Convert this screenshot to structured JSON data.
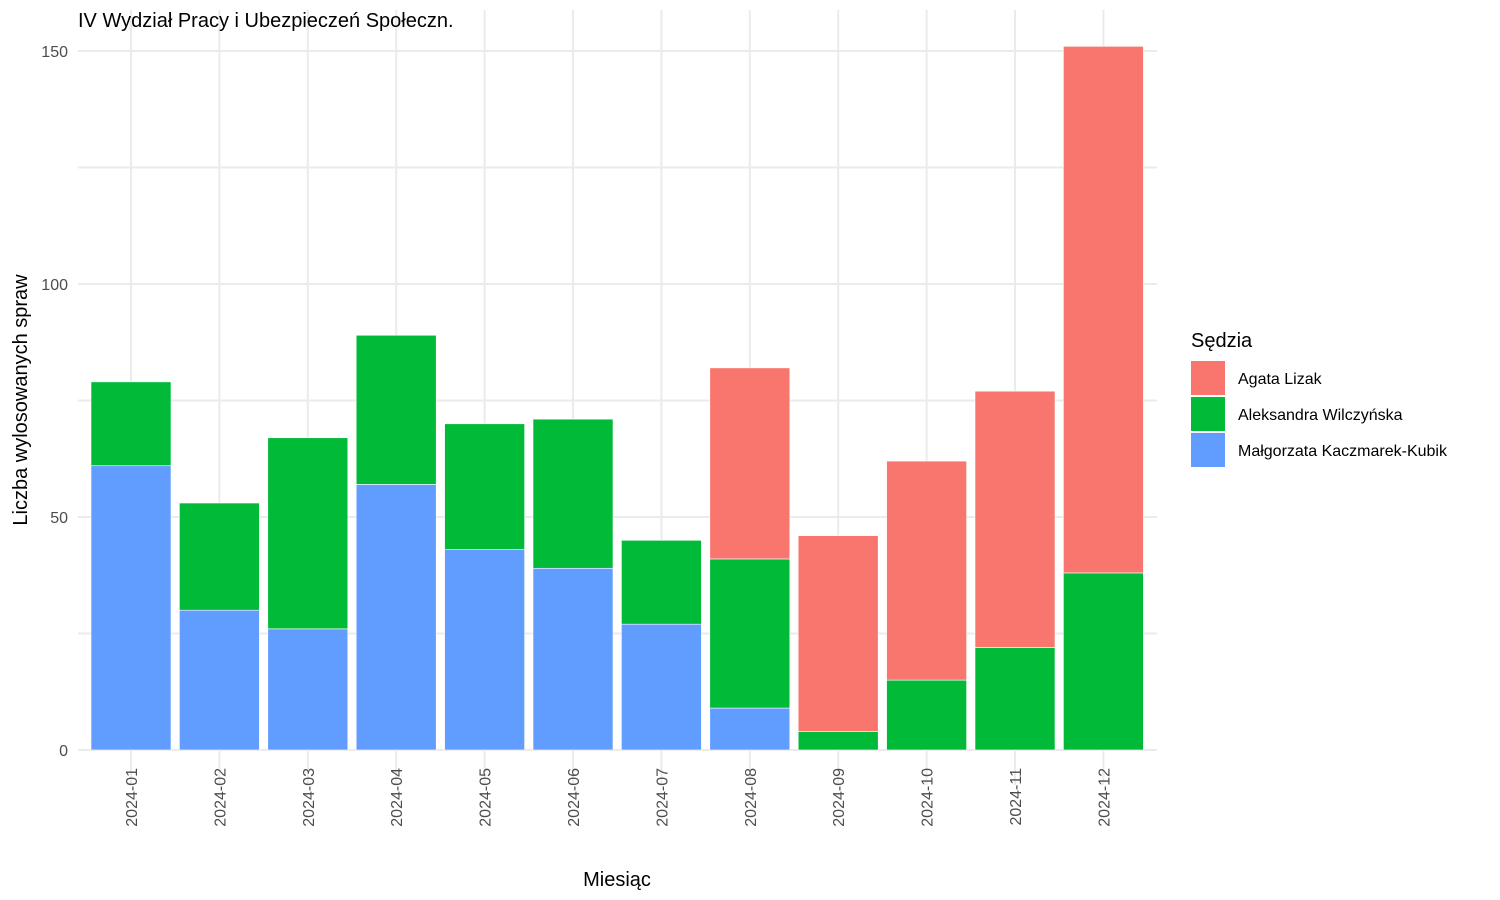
{
  "chart_data": {
    "type": "bar",
    "stacked": true,
    "title": "IV Wydział Pracy i Ubezpieczeń Społeczn.",
    "xlabel": "Miesiąc",
    "ylabel": "Liczba wylosowanych spraw",
    "ylim": [
      0,
      156
    ],
    "yticks": [
      0,
      50,
      100,
      150
    ],
    "grid": true,
    "legend_title": "Sędzia",
    "legend_position": "right",
    "categories": [
      "2024-01",
      "2024-02",
      "2024-03",
      "2024-04",
      "2024-05",
      "2024-06",
      "2024-07",
      "2024-08",
      "2024-09",
      "2024-10",
      "2024-11",
      "2024-12"
    ],
    "series": [
      {
        "name": "Małgorzata Kaczmarek-Kubik",
        "color": "#619CFF",
        "values": [
          61,
          30,
          26,
          57,
          43,
          39,
          27,
          9,
          0,
          0,
          0,
          0
        ]
      },
      {
        "name": "Aleksandra Wilczyńska",
        "color": "#00BA38",
        "values": [
          18,
          23,
          41,
          32,
          27,
          32,
          18,
          32,
          4,
          15,
          22,
          38
        ]
      },
      {
        "name": "Agata Lizak",
        "color": "#F8766D",
        "values": [
          0,
          0,
          0,
          0,
          0,
          0,
          0,
          41,
          42,
          47,
          55,
          113
        ]
      }
    ],
    "legend_order": [
      "Agata Lizak",
      "Aleksandra Wilczyńska",
      "Małgorzata Kaczmarek-Kubik"
    ]
  }
}
